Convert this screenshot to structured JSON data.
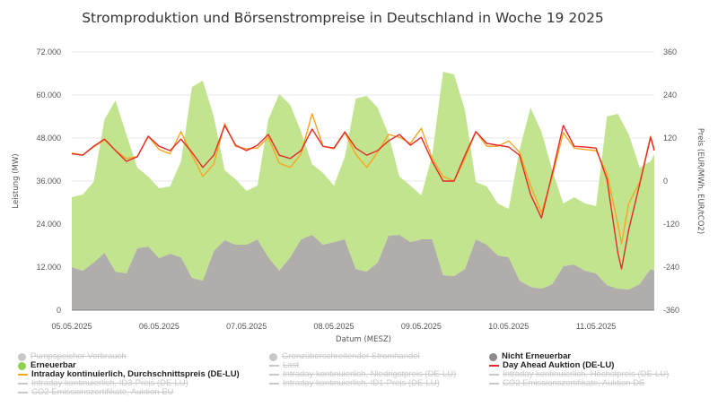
{
  "chart_data": {
    "type": "area+line",
    "title": "Stromproduktion und Börsenstrompreise in Deutschland in Woche 19 2025",
    "xlabel": "Datum (MESZ)",
    "ylabel_left": "Leistung (MW)",
    "ylabel_right": "Preis (EUR/MWh, EUR/tCO2)",
    "ylim_left": [
      0,
      72000
    ],
    "ylim_right": [
      -360,
      360
    ],
    "x_range": [
      "05.05 00:00",
      "11.05 16:00"
    ],
    "grid": true,
    "left_ticks": [
      "0",
      "12.000",
      "24.000",
      "36.000",
      "48.000",
      "60.000",
      "72.000"
    ],
    "left_tick_values": [
      0,
      12000,
      24000,
      36000,
      48000,
      60000,
      72000
    ],
    "right_ticks": [
      "-360",
      "-240",
      "-120",
      "0",
      "120",
      "240",
      "360"
    ],
    "right_tick_values": [
      -360,
      -240,
      -120,
      0,
      120,
      240,
      360
    ],
    "x_ticks": [
      "05.05.2025",
      "06.05.2025",
      "07.05.2025",
      "08.05.2025",
      "09.05.2025",
      "10.05.2025",
      "11.05.2025"
    ],
    "colors": {
      "nicht_erneuerbar": "#b1adab",
      "erneuerbar": "#c3e48f",
      "intraday": "#f8a51f",
      "day_ahead": "#e32b2b",
      "grid": "#e8e8e8"
    },
    "area_time": [
      "05.05 00:00",
      "05.05 03:00",
      "05.05 06:00",
      "05.05 09:00",
      "05.05 12:00",
      "05.05 15:00",
      "05.05 18:00",
      "05.05 21:00",
      "06.05 00:00",
      "06.05 03:00",
      "06.05 06:00",
      "06.05 09:00",
      "06.05 12:00",
      "06.05 15:00",
      "06.05 18:00",
      "06.05 21:00",
      "07.05 00:00",
      "07.05 03:00",
      "07.05 06:00",
      "07.05 09:00",
      "07.05 12:00",
      "07.05 15:00",
      "07.05 18:00",
      "07.05 21:00",
      "08.05 00:00",
      "08.05 03:00",
      "08.05 06:00",
      "08.05 09:00",
      "08.05 12:00",
      "08.05 15:00",
      "08.05 18:00",
      "08.05 21:00",
      "09.05 00:00",
      "09.05 03:00",
      "09.05 06:00",
      "09.05 09:00",
      "09.05 12:00",
      "09.05 15:00",
      "09.05 18:00",
      "09.05 21:00",
      "10.05 00:00",
      "10.05 03:00",
      "10.05 06:00",
      "10.05 09:00",
      "10.05 12:00",
      "10.05 15:00",
      "10.05 18:00",
      "10.05 21:00",
      "11.05 00:00",
      "11.05 03:00",
      "11.05 06:00",
      "11.05 09:00",
      "11.05 12:00",
      "11.05 15:00",
      "11.05 16:00"
    ],
    "series": [
      {
        "name": "Nicht Erneuerbar",
        "axis": "left",
        "kind": "area",
        "values": [
          12000,
          11000,
          13250,
          16000,
          10750,
          10250,
          17250,
          17750,
          14500,
          15750,
          14750,
          9000,
          8250,
          16500,
          19500,
          18250,
          18250,
          19750,
          14750,
          11000,
          14750,
          19750,
          21000,
          18250,
          19000,
          19750,
          11500,
          10750,
          13250,
          20750,
          21000,
          19000,
          19750,
          19750,
          9750,
          9500,
          11500,
          19750,
          18250,
          15250,
          14750,
          8250,
          6500,
          6000,
          7250,
          12250,
          12750,
          11000,
          10250,
          7000,
          6000,
          5750,
          7250,
          11500,
          11000
        ]
      },
      {
        "name": "Erneuerbar",
        "axis": "left",
        "kind": "area",
        "stacked": true,
        "values": [
          19500,
          21250,
          22500,
          37250,
          47750,
          38750,
          22500,
          19500,
          19500,
          18750,
          26750,
          53250,
          55750,
          37500,
          19500,
          18250,
          15000,
          15000,
          38500,
          49250,
          42500,
          30000,
          19750,
          20000,
          15750,
          23000,
          47500,
          49000,
          43250,
          28250,
          16250,
          15750,
          12250,
          23500,
          56750,
          56250,
          44250,
          16000,
          16250,
          14500,
          13500,
          36500,
          50000,
          43750,
          31750,
          17500,
          18750,
          18750,
          18750,
          47000,
          48750,
          43250,
          32500,
          30000,
          32500
        ]
      }
    ],
    "price_time": [
      "05.05 00:00",
      "05.05 03:00",
      "05.05 06:00",
      "05.05 09:00",
      "05.05 12:00",
      "05.05 15:00",
      "05.05 18:00",
      "05.05 21:00",
      "06.05 00:00",
      "06.05 03:00",
      "06.05 06:00",
      "06.05 09:00",
      "06.05 12:00",
      "06.05 15:00",
      "06.05 18:00",
      "06.05 21:00",
      "07.05 00:00",
      "07.05 03:00",
      "07.05 06:00",
      "07.05 09:00",
      "07.05 12:00",
      "07.05 15:00",
      "07.05 18:00",
      "07.05 21:00",
      "08.05 00:00",
      "08.05 03:00",
      "08.05 06:00",
      "08.05 09:00",
      "08.05 12:00",
      "08.05 15:00",
      "08.05 18:00",
      "08.05 21:00",
      "09.05 00:00",
      "09.05 03:00",
      "09.05 06:00",
      "09.05 09:00",
      "09.05 12:00",
      "09.05 15:00",
      "09.05 18:00",
      "09.05 21:00",
      "10.05 00:00",
      "10.05 03:00",
      "10.05 06:00",
      "10.05 09:00",
      "10.05 12:00",
      "10.05 15:00",
      "10.05 18:00",
      "10.05 21:00",
      "11.05 00:00",
      "11.05 03:00",
      "11.05 06:00",
      "11.05 07:00",
      "11.05 09:00",
      "11.05 12:00",
      "11.05 15:00",
      "11.05 16:00"
    ],
    "price_series": [
      {
        "name": "Day Ahead Auktion (DE-LU)",
        "axis": "right",
        "kind": "line",
        "values": [
          76,
          72,
          97,
          117,
          85,
          55,
          68,
          125,
          97,
          85,
          117,
          80,
          38,
          72,
          155,
          100,
          85,
          100,
          130,
          72,
          63,
          85,
          145,
          97,
          92,
          137,
          92,
          72,
          85,
          112,
          130,
          100,
          122,
          55,
          0,
          0,
          72,
          138,
          105,
          100,
          95,
          72,
          -37,
          -103,
          22,
          155,
          97,
          95,
          92,
          5,
          -200,
          -245,
          -135,
          -8,
          122,
          85
        ]
      },
      {
        "name": "Intraday kontinuierlich, Durchschnittspreis (DE-LU)",
        "axis": "right",
        "kind": "line",
        "values": [
          78,
          73,
          95,
          115,
          85,
          63,
          68,
          125,
          88,
          76,
          138,
          72,
          13,
          47,
          160,
          97,
          90,
          92,
          122,
          50,
          38,
          76,
          188,
          97,
          90,
          135,
          75,
          38,
          80,
          130,
          122,
          105,
          147,
          63,
          13,
          0,
          63,
          138,
          97,
          97,
          112,
          80,
          -12,
          -88,
          13,
          135,
          92,
          88,
          85,
          22,
          -120,
          -175,
          -62,
          -3,
          125,
          88
        ]
      }
    ]
  },
  "legend": [
    {
      "label": "Pumpspeicher Verbrauch",
      "marker": "dot",
      "color": "#c8c8c8",
      "active": false
    },
    {
      "label": "Grenzüberschreitender Stromhandel",
      "marker": "dot",
      "color": "#c8c8c8",
      "active": false
    },
    {
      "label": "Nicht Erneuerbar",
      "marker": "dot",
      "color": "#8f8a88",
      "active": true
    },
    {
      "label": "Erneuerbar",
      "marker": "dot",
      "color": "#8fd14f",
      "active": true
    },
    {
      "label": "Last",
      "marker": "line",
      "color": "#c8c8c8",
      "active": false
    },
    {
      "label": "Day Ahead Auktion (DE-LU)",
      "marker": "line",
      "color": "#e32b2b",
      "active": true
    },
    {
      "label": "Intraday kontinuierlich, Durchschnittspreis (DE-LU)",
      "marker": "line",
      "color": "#f8a51f",
      "active": true
    },
    {
      "label": "Intraday kontinuierlich, Niedrigstpreis (DE-LU)",
      "marker": "line",
      "color": "#c8c8c8",
      "active": false
    },
    {
      "label": "Intraday kontinuierlich, Höchstpreis (DE-LU)",
      "marker": "line",
      "color": "#c8c8c8",
      "active": false
    },
    {
      "label": "Intraday kontinuierlich, ID3-Preis (DE-LU)",
      "marker": "line",
      "color": "#c8c8c8",
      "active": false
    },
    {
      "label": "Intraday kontinuierlich, ID1-Preis (DE-LU)",
      "marker": "line",
      "color": "#c8c8c8",
      "active": false
    },
    {
      "label": "CO2 Emissionszertifikate, Auktion DE",
      "marker": "line",
      "color": "#c8c8c8",
      "active": false
    },
    {
      "label": "CO2 Emissionszertifikate, Auktion EU",
      "marker": "line",
      "color": "#c8c8c8",
      "active": false
    }
  ]
}
